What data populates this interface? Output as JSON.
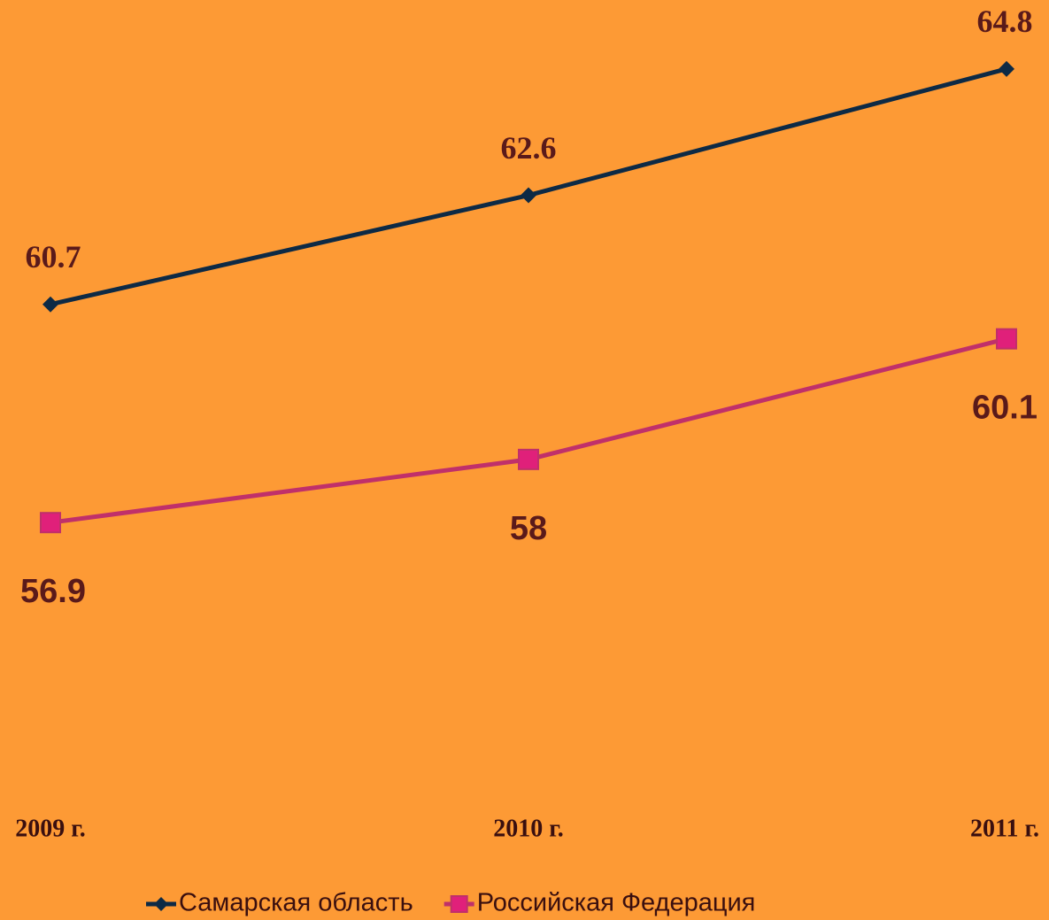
{
  "chart_data": {
    "type": "line",
    "categories": [
      "2009 г.",
      "2010 г.",
      "2011 г."
    ],
    "series": [
      {
        "name": "Самарская область",
        "color": "#0d2a45",
        "marker": "diamond",
        "values": [
          60.7,
          62.6,
          64.8
        ]
      },
      {
        "name": "Российская Федерация",
        "color": "#c0306a",
        "marker": "square",
        "values": [
          56.9,
          58,
          60.1
        ]
      }
    ],
    "ylim": [
      52,
      66
    ],
    "legend": "bottom"
  }
}
